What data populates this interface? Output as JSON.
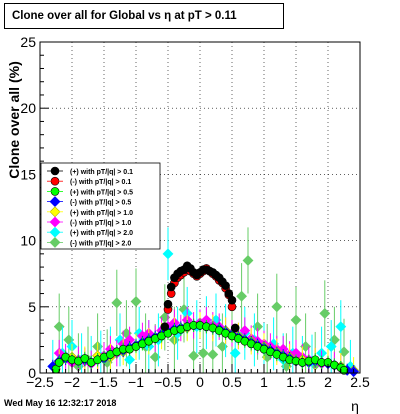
{
  "title": "Clone  over all for Global vs   η at pT > 0.11",
  "footer_date": "Wed May 16 12:32:17 2018",
  "chart_data": {
    "type": "scatter",
    "title": "Clone  over all for Global vs   η at pT > 0.11",
    "xlabel": "η",
    "ylabel": "Clone  over all (%)",
    "xlim": [
      -2.5,
      2.5
    ],
    "ylim": [
      0,
      25
    ],
    "x_ticks": [
      -2.5,
      -2,
      -1.5,
      -1,
      -0.5,
      0,
      0.5,
      1,
      1.5,
      2,
      2.5
    ],
    "x_tick_labels": [
      "−2.5",
      "−2",
      "−1.5",
      "−1",
      "−0.5",
      "0",
      "0.5",
      "1",
      "1.5",
      "2",
      "2.5"
    ],
    "y_ticks": [
      0,
      5,
      10,
      15,
      20,
      25
    ],
    "y_tick_labels": [
      "0",
      "5",
      "10",
      "15",
      "20",
      "25"
    ],
    "grid": true,
    "legend_position": "left",
    "series": [
      {
        "name": "(+) with pT/|q| > 0.1",
        "color": "#000000",
        "marker": "circle",
        "x": [
          -0.55,
          -0.5,
          -0.45,
          -0.4,
          -0.35,
          -0.3,
          -0.25,
          -0.2,
          -0.15,
          -0.1,
          -0.05,
          0.0,
          0.05,
          0.1,
          0.15,
          0.2,
          0.25,
          0.3,
          0.35,
          0.4,
          0.45,
          0.5,
          0.55
        ],
        "y": [
          3.5,
          5.2,
          6.5,
          7.2,
          7.5,
          7.7,
          7.8,
          8.1,
          7.9,
          7.6,
          7.4,
          7.6,
          7.8,
          7.8,
          7.7,
          7.6,
          7.4,
          7.2,
          6.9,
          6.6,
          6.0,
          5.5,
          3.4
        ],
        "err": [
          0.3,
          0.3,
          0.3,
          0.3,
          0.3,
          0.3,
          0.3,
          0.3,
          0.3,
          0.3,
          0.3,
          0.3,
          0.3,
          0.3,
          0.3,
          0.3,
          0.3,
          0.3,
          0.3,
          0.3,
          0.3,
          0.3,
          0.3
        ]
      },
      {
        "name": "(-) with pT/|q| > 0.1",
        "color": "#ff0000",
        "marker": "circle",
        "x": [
          -0.5,
          -0.45,
          -0.4,
          -0.35,
          -0.3,
          -0.25,
          -0.2,
          -0.15,
          -0.1,
          -0.05,
          0.0,
          0.05,
          0.1,
          0.15,
          0.2,
          0.25,
          0.3,
          0.35,
          0.4,
          0.45,
          0.5
        ],
        "y": [
          4.8,
          6.0,
          6.8,
          7.2,
          7.4,
          7.6,
          7.8,
          7.7,
          7.5,
          7.3,
          7.5,
          7.7,
          7.9,
          7.7,
          7.5,
          7.3,
          7.0,
          6.8,
          6.4,
          5.9,
          5.0
        ],
        "err": [
          0.3,
          0.3,
          0.3,
          0.3,
          0.3,
          0.3,
          0.3,
          0.3,
          0.3,
          0.3,
          0.3,
          0.3,
          0.3,
          0.3,
          0.3,
          0.3,
          0.3,
          0.3,
          0.3,
          0.3,
          0.3
        ]
      },
      {
        "name": "(+) with pT/|q| > 0.5",
        "color": "#00ff00",
        "marker": "circle",
        "x": [
          -2.25,
          -2.2,
          -2.1,
          -2.0,
          -1.9,
          -1.8,
          -1.7,
          -1.6,
          -1.5,
          -1.4,
          -1.3,
          -1.2,
          -1.1,
          -1.0,
          -0.9,
          -0.8,
          -0.7,
          -0.6,
          -0.5,
          -0.4,
          -0.3,
          -0.2,
          -0.1,
          0.0,
          0.1,
          0.2,
          0.3,
          0.4,
          0.5,
          0.6,
          0.7,
          0.8,
          0.9,
          1.0,
          1.1,
          1.2,
          1.3,
          1.4,
          1.5,
          1.6,
          1.7,
          1.8,
          1.9,
          2.0,
          2.1,
          2.2,
          2.25
        ],
        "y": [
          0.3,
          0.8,
          1.2,
          1.0,
          0.9,
          1.1,
          0.8,
          1.0,
          1.2,
          1.4,
          1.6,
          1.8,
          1.8,
          2.0,
          2.2,
          2.4,
          2.6,
          2.8,
          3.0,
          3.2,
          3.3,
          3.5,
          3.6,
          3.6,
          3.5,
          3.4,
          3.2,
          3.0,
          2.8,
          2.6,
          2.4,
          2.2,
          2.0,
          1.8,
          1.6,
          1.4,
          1.2,
          1.0,
          0.9,
          0.8,
          0.9,
          1.0,
          0.8,
          0.8,
          0.6,
          0.4,
          0.2
        ],
        "err": [
          0.5,
          0.5,
          0.5,
          0.5,
          0.5,
          0.5,
          0.5,
          0.5,
          0.5,
          0.5,
          0.5,
          0.5,
          0.5,
          0.5,
          0.5,
          0.5,
          0.5,
          0.5,
          0.5,
          0.5,
          0.5,
          0.5,
          0.5,
          0.5,
          0.5,
          0.5,
          0.5,
          0.5,
          0.5,
          0.5,
          0.5,
          0.5,
          0.5,
          0.5,
          0.5,
          0.5,
          0.5,
          0.5,
          0.5,
          0.5,
          0.5,
          0.5,
          0.5,
          0.5,
          0.5,
          0.5,
          0.5
        ]
      },
      {
        "name": "(-) with pT/|q| > 0.5",
        "color": "#0000ff",
        "marker": "diamond",
        "x": [
          -2.3,
          -2.2,
          -2.1,
          -2.0,
          -1.9,
          -1.8,
          -1.7,
          -1.6,
          -1.5,
          -1.4,
          -1.3,
          -1.2,
          -1.1,
          -1.0,
          -0.9,
          -0.8,
          -0.7,
          -0.6,
          -0.5,
          -0.4,
          -0.3,
          -0.2,
          -0.1,
          0.0,
          0.1,
          0.2,
          0.3,
          0.4,
          0.5,
          0.6,
          0.7,
          0.8,
          0.9,
          1.0,
          1.1,
          1.2,
          1.3,
          1.4,
          1.5,
          1.6,
          1.7,
          1.8,
          1.9,
          2.0,
          2.1,
          2.2,
          2.3,
          2.4
        ],
        "y": [
          0.5,
          0.9,
          1.1,
          1.0,
          0.9,
          1.0,
          0.8,
          1.0,
          1.1,
          1.4,
          1.6,
          1.7,
          1.9,
          2.1,
          2.3,
          2.5,
          2.7,
          2.9,
          3.1,
          3.3,
          3.4,
          3.5,
          3.6,
          3.6,
          3.5,
          3.4,
          3.3,
          3.1,
          2.9,
          2.7,
          2.5,
          2.3,
          2.1,
          1.9,
          1.7,
          1.5,
          1.3,
          1.1,
          0.9,
          0.8,
          0.8,
          0.9,
          0.8,
          0.7,
          0.6,
          0.4,
          0.2,
          0.1
        ],
        "err": [
          0.5,
          0.5,
          0.5,
          0.5,
          0.5,
          0.5,
          0.5,
          0.5,
          0.5,
          0.5,
          0.5,
          0.5,
          0.5,
          0.5,
          0.5,
          0.5,
          0.5,
          0.5,
          0.5,
          0.5,
          0.5,
          0.5,
          0.5,
          0.5,
          0.5,
          0.5,
          0.5,
          0.5,
          0.5,
          0.5,
          0.5,
          0.5,
          0.5,
          0.5,
          0.5,
          0.5,
          0.5,
          0.5,
          0.5,
          0.5,
          0.5,
          0.5,
          0.5,
          0.5,
          0.5,
          0.5,
          0.5,
          0.5
        ]
      },
      {
        "name": "(+) with pT/|q| > 1.0",
        "color": "#ffff00",
        "marker": "diamond",
        "x": [
          -2.2,
          -2.0,
          -1.8,
          -1.6,
          -1.4,
          -1.2,
          -1.0,
          -0.8,
          -0.6,
          -0.4,
          -0.2,
          0.0,
          0.2,
          0.4,
          0.6,
          0.8,
          1.0,
          1.2,
          1.4,
          1.6,
          1.8,
          2.0,
          2.2,
          2.4
        ],
        "y": [
          0.8,
          1.2,
          1.0,
          1.3,
          1.2,
          1.6,
          2.0,
          2.4,
          2.8,
          3.2,
          3.4,
          3.6,
          3.4,
          3.2,
          2.8,
          2.4,
          2.0,
          1.6,
          1.2,
          1.0,
          0.9,
          0.8,
          0.5,
          0.2
        ],
        "err": [
          1.0,
          1.0,
          1.0,
          1.0,
          1.0,
          1.0,
          1.0,
          1.0,
          1.0,
          1.0,
          1.0,
          1.0,
          1.0,
          1.0,
          1.0,
          1.0,
          1.0,
          1.0,
          1.0,
          1.0,
          1.0,
          1.0,
          1.0,
          1.0
        ]
      },
      {
        "name": "(-) with pT/|q| > 1.0",
        "color": "#ff00ff",
        "marker": "diamond",
        "x": [
          -2.2,
          -2.1,
          -2.0,
          -1.9,
          -1.8,
          -1.7,
          -1.6,
          -1.5,
          -1.4,
          -1.3,
          -1.2,
          -1.1,
          -1.0,
          -0.9,
          -0.8,
          -0.7,
          -0.6,
          -0.5,
          -0.4,
          -0.3,
          -0.2,
          -0.1,
          0.0,
          0.1,
          0.2,
          0.3,
          0.4,
          0.5,
          0.6,
          0.7,
          0.8,
          0.9,
          1.0,
          1.1,
          1.2,
          1.3,
          1.4,
          1.5,
          1.6,
          1.7,
          1.8,
          1.9,
          2.0,
          2.1,
          2.2
        ],
        "y": [
          1.5,
          1.2,
          0.8,
          1.0,
          0.9,
          0.7,
          1.0,
          1.3,
          1.8,
          1.5,
          2.2,
          2.5,
          2.0,
          2.8,
          3.0,
          2.6,
          3.2,
          3.5,
          3.8,
          3.4,
          4.0,
          3.6,
          3.8,
          4.0,
          3.6,
          3.5,
          3.2,
          3.0,
          2.8,
          3.2,
          2.6,
          2.4,
          2.2,
          2.0,
          1.8,
          1.8,
          1.4,
          1.5,
          1.2,
          1.0,
          0.9,
          0.7,
          0.8,
          0.6,
          0.4
        ],
        "err": [
          1.0,
          1.0,
          1.0,
          1.0,
          1.0,
          1.0,
          1.0,
          1.0,
          1.0,
          1.0,
          1.0,
          1.0,
          1.0,
          1.0,
          1.0,
          1.0,
          1.0,
          1.0,
          1.0,
          1.0,
          1.0,
          1.0,
          1.0,
          1.0,
          1.0,
          1.0,
          1.0,
          1.0,
          1.0,
          1.0,
          1.0,
          1.0,
          1.0,
          1.0,
          1.0,
          1.0,
          1.0,
          1.0,
          1.0,
          1.0,
          1.0,
          1.0,
          1.0,
          1.0,
          1.0
        ]
      },
      {
        "name": "(+) with pT/|q| > 2.0",
        "color": "#00ffff",
        "marker": "diamond",
        "x": [
          -2.3,
          -2.15,
          -2.0,
          -1.85,
          -1.7,
          -1.55,
          -1.4,
          -1.25,
          -1.1,
          -0.95,
          -0.8,
          -0.65,
          -0.5,
          -0.35,
          -0.2,
          -0.05,
          0.1,
          0.25,
          0.4,
          0.55,
          0.7,
          0.85,
          1.0,
          1.15,
          1.3,
          1.45,
          1.6,
          1.75,
          1.9,
          2.05,
          2.2,
          2.35
        ],
        "y": [
          0.5,
          1.5,
          2.0,
          1.0,
          0.8,
          1.2,
          1.5,
          2.5,
          1.0,
          3.0,
          2.0,
          2.5,
          9.0,
          3.0,
          4.5,
          3.5,
          3.8,
          4.0,
          3.2,
          1.5,
          3.0,
          2.5,
          1.8,
          2.2,
          1.0,
          1.5,
          0.8,
          0.9,
          1.5,
          2.0,
          3.5,
          0.5
        ],
        "err": [
          2.0,
          2.0,
          2.0,
          2.0,
          2.0,
          2.0,
          2.0,
          2.0,
          2.0,
          2.0,
          2.0,
          2.0,
          2.0,
          2.0,
          2.0,
          2.0,
          2.0,
          2.0,
          2.0,
          2.0,
          2.0,
          2.0,
          2.0,
          2.0,
          2.0,
          2.0,
          2.0,
          2.0,
          2.0,
          2.0,
          2.0,
          2.0
        ]
      },
      {
        "name": "(-) with pT/|q| > 2.0",
        "color": "#66cc66",
        "marker": "diamond",
        "x": [
          -2.2,
          -2.05,
          -1.9,
          -1.75,
          -1.6,
          -1.45,
          -1.3,
          -1.15,
          -1.0,
          -0.85,
          -0.7,
          -0.55,
          -0.4,
          -0.25,
          -0.1,
          0.05,
          0.2,
          0.35,
          0.5,
          0.65,
          0.75,
          0.9,
          1.05,
          1.2,
          1.35,
          1.5,
          1.65,
          1.8,
          1.95,
          2.1,
          2.25
        ],
        "y": [
          3.5,
          2.5,
          0.5,
          1.0,
          2.0,
          0.8,
          5.3,
          3.0,
          5.4,
          2.0,
          1.2,
          4.2,
          2.5,
          4.8,
          1.3,
          1.5,
          1.4,
          2.0,
          2.8,
          5.8,
          8.5,
          3.5,
          1.2,
          5.0,
          0.5,
          4.0,
          2.0,
          0.6,
          4.5,
          2.5,
          1.6
        ],
        "err": [
          2.5,
          2.5,
          2.5,
          2.5,
          2.5,
          2.5,
          2.5,
          2.5,
          2.5,
          2.5,
          2.5,
          2.5,
          2.5,
          2.5,
          2.5,
          2.5,
          2.5,
          2.5,
          2.5,
          2.5,
          2.5,
          2.5,
          2.5,
          2.5,
          2.5,
          2.5,
          2.5,
          2.5,
          2.5,
          2.5,
          2.5
        ]
      }
    ]
  }
}
